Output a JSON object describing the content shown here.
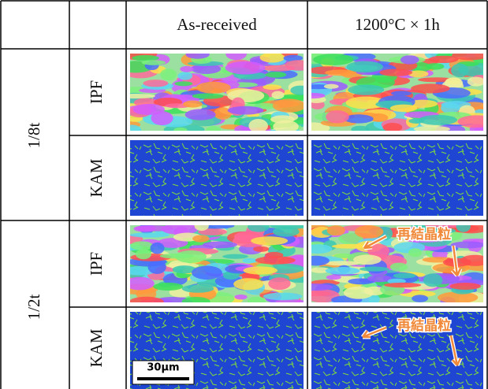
{
  "header": {
    "columns": [
      "As-received",
      "1200°C × 1h"
    ]
  },
  "rows": [
    {
      "position": "1/8t",
      "maps": [
        "IPF",
        "KAM"
      ]
    },
    {
      "position": "1/2t",
      "maps": [
        "IPF",
        "KAM"
      ]
    }
  ],
  "annotations": [
    "再結晶粒",
    "再結晶粒"
  ],
  "scale_bar": "30μm"
}
